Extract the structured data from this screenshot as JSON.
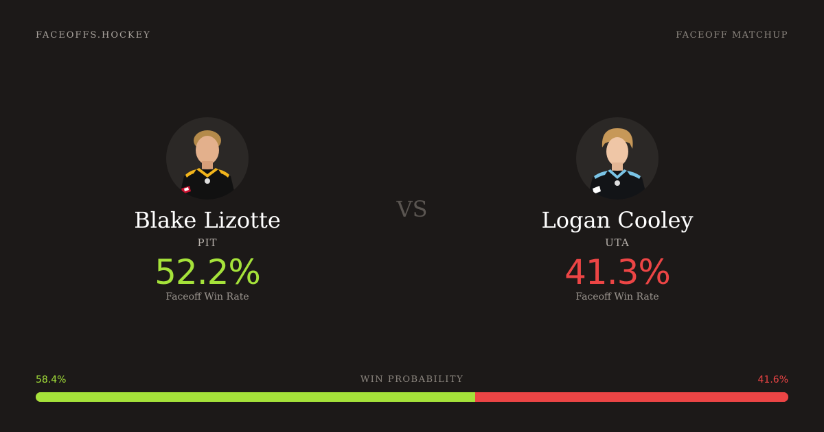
{
  "header": {
    "brand": "FACEOFFS.HOCKEY",
    "kicker": "FACEOFF MATCHUP"
  },
  "players": [
    {
      "name": "Blake Lizotte",
      "team": "PIT",
      "rate": "52.2%",
      "rate_label": "Faceoff Win Rate",
      "rate_color": "#a5e23a",
      "jersey_color": "#111111",
      "trim_color": "#f2b51c"
    },
    {
      "name": "Logan Cooley",
      "team": "UTA",
      "rate": "41.3%",
      "rate_label": "Faceoff Win Rate",
      "rate_color": "#ec4545",
      "jersey_color": "#121417",
      "trim_color": "#7ac4e6"
    }
  ],
  "vs_label": "VS",
  "win_probability": {
    "title": "WIN PROBABILITY",
    "left_label": "58.4%",
    "right_label": "41.6%",
    "left_value": 58.4,
    "right_value": 41.6,
    "left_color": "#a5e23a",
    "right_color": "#ec4545"
  }
}
